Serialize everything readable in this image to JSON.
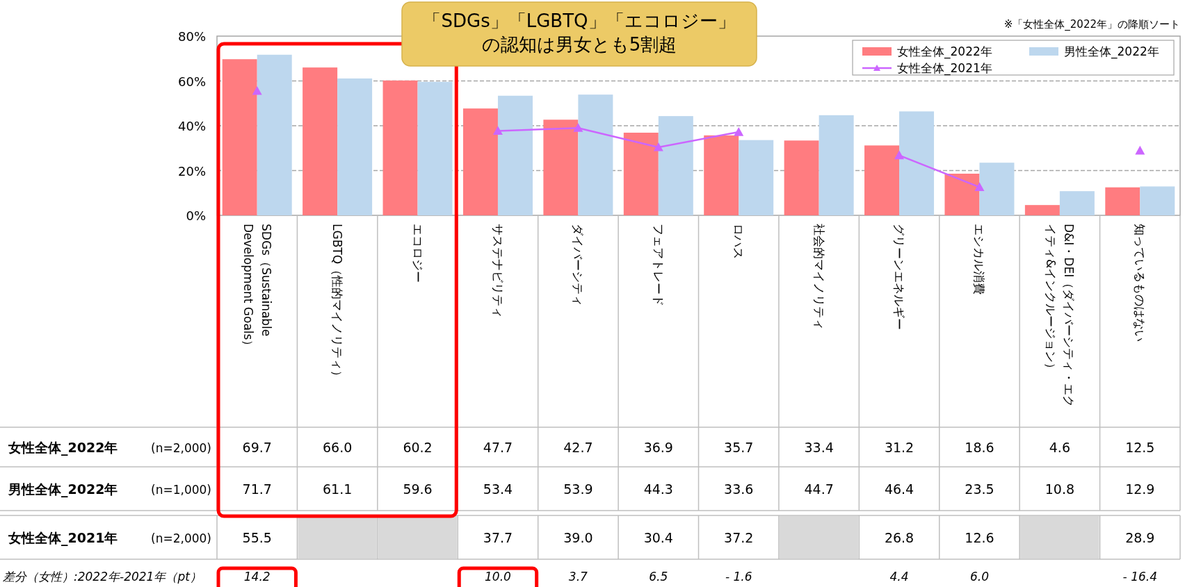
{
  "chart_data": {
    "type": "bar",
    "title": "「SDGs」「LGBTQ」「エコロジー」の認知は男女とも5割超",
    "categories": [
      "SDGs（Sustainable Development Goals）",
      "LGBTQ（性的マイノリティ）",
      "エコロジー",
      "サステナビリティ",
      "ダイバーシティ",
      "フェアトレード",
      "ロハス",
      "社会的マイノリティ",
      "グリーンエネルギー",
      "エシカル消費",
      "D&I・DEI（ダイバーシティ・エクイティ&インクルージョン）",
      "知っているものはない"
    ],
    "series": [
      {
        "name": "女性全体_2022年",
        "color": "#ff7c80",
        "values": [
          69.7,
          66.0,
          60.2,
          47.7,
          42.7,
          36.9,
          35.7,
          33.4,
          31.2,
          18.6,
          4.6,
          12.5
        ],
        "value_labels": [
          "69.7",
          "66.0",
          "60.2",
          "47.7",
          "42.7",
          "36.9",
          "35.7",
          "33.4",
          "31.2",
          "18.6",
          "4.6",
          "12.5"
        ]
      },
      {
        "name": "男性全体_2022年",
        "color": "#bdd7ee",
        "values": [
          71.7,
          61.1,
          59.6,
          53.4,
          53.9,
          44.3,
          33.6,
          44.7,
          46.4,
          23.5,
          10.8,
          12.9
        ],
        "value_labels": [
          "71.7",
          "61.1",
          "59.6",
          "53.4",
          "53.9",
          "44.3",
          "33.6",
          "44.7",
          "46.4",
          "23.5",
          "10.8",
          "12.9"
        ]
      },
      {
        "name": "女性全体_2021年",
        "type": "line",
        "color": "#cc66ff",
        "marker": "triangle",
        "values": [
          55.5,
          null,
          null,
          37.7,
          39.0,
          30.4,
          37.2,
          null,
          26.8,
          12.6,
          null,
          28.9
        ],
        "value_labels": [
          "55.5",
          null,
          null,
          "37.7",
          "39.0",
          "30.4",
          "37.2",
          null,
          "26.8",
          "12.6",
          null,
          "28.9"
        ]
      }
    ],
    "ylim": [
      0,
      80
    ],
    "yticks": [
      {
        "value": 0,
        "label": "0%"
      },
      {
        "value": 20,
        "label": "20%"
      },
      {
        "value": 40,
        "label": "40%"
      },
      {
        "value": 60,
        "label": "60%"
      },
      {
        "value": 80,
        "label": "80%"
      }
    ],
    "grid": "y",
    "legend": "top right",
    "annotations": [
      "※「女性全体_2022年」の降順ソート",
      "(n=2,000)",
      "(n=1,000)",
      "(n=2,000)",
      "差分（女性）:2022年-2021年（pt）",
      "14.2",
      "10.0",
      "3.7",
      "6.5",
      "- 1.6",
      "4.4",
      "6.0",
      "- 16.4"
    ]
  }
}
